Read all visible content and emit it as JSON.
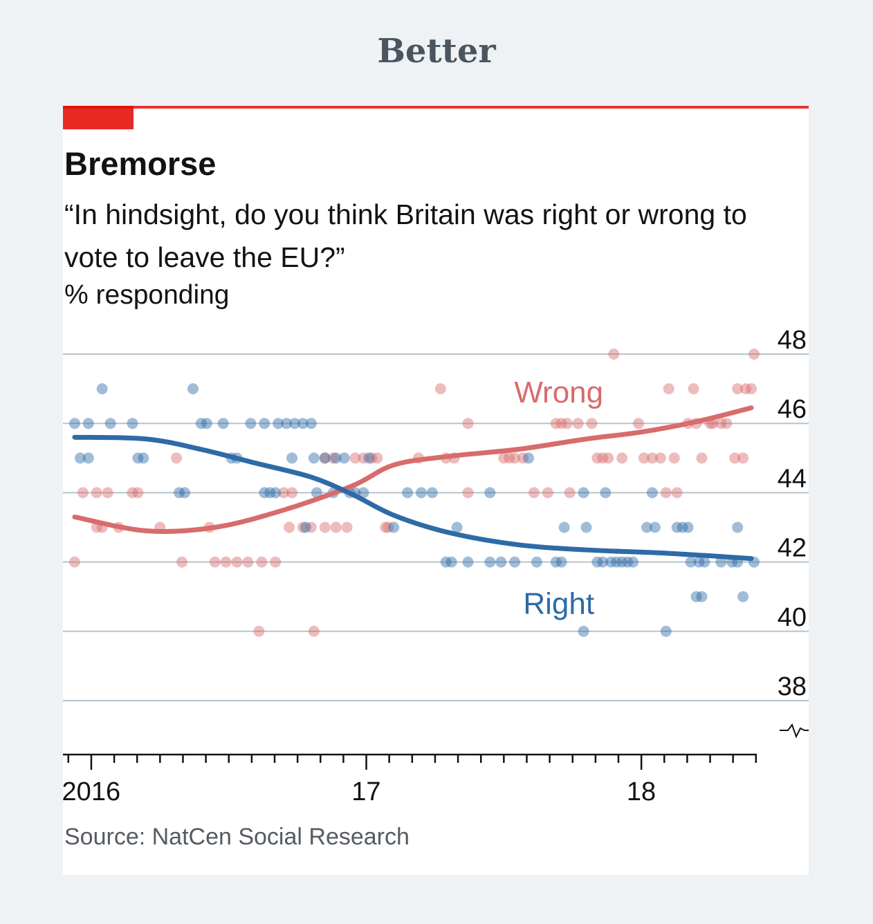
{
  "header": {
    "title": "Better"
  },
  "colors": {
    "accent": "#e3120b",
    "wrong": "#d86b6b",
    "right": "#2e6aa6",
    "grid": "#b7c3cc"
  },
  "chart_data": {
    "type": "scatter",
    "title": "Bremorse",
    "subtitle": "“In hindsight, do you think Britain was right or wrong to vote to leave the EU?”",
    "unit": "% responding",
    "ylim": [
      38,
      48
    ],
    "yticks": [
      38,
      40,
      42,
      44,
      46,
      48
    ],
    "y_axis_break": true,
    "xlim": [
      2015.92,
      2018.42
    ],
    "xticks": [
      {
        "value": 2016,
        "label": "2016"
      },
      {
        "value": 2017,
        "label": "17"
      },
      {
        "value": 2018,
        "label": "18"
      }
    ],
    "grid": true,
    "series": [
      {
        "name": "Wrong",
        "color": "#d86b6b",
        "points": [
          [
            2015.94,
            42
          ],
          [
            2015.97,
            44
          ],
          [
            2016.02,
            43
          ],
          [
            2016.04,
            43
          ],
          [
            2016.1,
            43
          ],
          [
            2016.02,
            44
          ],
          [
            2016.06,
            44
          ],
          [
            2016.15,
            44
          ],
          [
            2016.17,
            44
          ],
          [
            2016.25,
            43
          ],
          [
            2016.31,
            45
          ],
          [
            2016.33,
            42
          ],
          [
            2016.43,
            43
          ],
          [
            2016.45,
            42
          ],
          [
            2016.49,
            42
          ],
          [
            2016.53,
            42
          ],
          [
            2016.57,
            42
          ],
          [
            2016.62,
            42
          ],
          [
            2016.61,
            40
          ],
          [
            2016.67,
            42
          ],
          [
            2016.7,
            44
          ],
          [
            2016.73,
            44
          ],
          [
            2016.72,
            43
          ],
          [
            2016.77,
            43
          ],
          [
            2016.8,
            43
          ],
          [
            2016.85,
            45
          ],
          [
            2016.88,
            45
          ],
          [
            2016.85,
            43
          ],
          [
            2016.89,
            43
          ],
          [
            2016.93,
            43
          ],
          [
            2016.81,
            40
          ],
          [
            2016.96,
            45
          ],
          [
            2016.99,
            45
          ],
          [
            2017.02,
            45
          ],
          [
            2017.04,
            45
          ],
          [
            2017.07,
            43
          ],
          [
            2017.08,
            43
          ],
          [
            2017.19,
            45
          ],
          [
            2017.27,
            47
          ],
          [
            2017.29,
            45
          ],
          [
            2017.32,
            45
          ],
          [
            2017.37,
            46
          ],
          [
            2017.37,
            44
          ],
          [
            2017.5,
            45
          ],
          [
            2017.52,
            45
          ],
          [
            2017.54,
            45
          ],
          [
            2017.57,
            45
          ],
          [
            2017.61,
            44
          ],
          [
            2017.66,
            44
          ],
          [
            2017.69,
            46
          ],
          [
            2017.71,
            46
          ],
          [
            2017.73,
            46
          ],
          [
            2017.74,
            44
          ],
          [
            2017.77,
            46
          ],
          [
            2017.82,
            46
          ],
          [
            2017.84,
            45
          ],
          [
            2017.86,
            45
          ],
          [
            2017.88,
            45
          ],
          [
            2017.9,
            48
          ],
          [
            2017.93,
            45
          ],
          [
            2017.99,
            46
          ],
          [
            2018.01,
            45
          ],
          [
            2018.04,
            45
          ],
          [
            2018.07,
            45
          ],
          [
            2018.1,
            47
          ],
          [
            2018.12,
            45
          ],
          [
            2018.09,
            44
          ],
          [
            2018.13,
            44
          ],
          [
            2018.19,
            47
          ],
          [
            2018.17,
            46
          ],
          [
            2018.2,
            46
          ],
          [
            2018.22,
            45
          ],
          [
            2018.25,
            46
          ],
          [
            2018.26,
            46
          ],
          [
            2018.29,
            46
          ],
          [
            2018.31,
            46
          ],
          [
            2018.35,
            47
          ],
          [
            2018.38,
            47
          ],
          [
            2018.4,
            47
          ],
          [
            2018.34,
            45
          ],
          [
            2018.37,
            45
          ],
          [
            2018.41,
            48
          ]
        ],
        "trend": [
          [
            2015.94,
            43.3
          ],
          [
            2016.2,
            42.9
          ],
          [
            2016.45,
            43.0
          ],
          [
            2016.7,
            43.5
          ],
          [
            2016.95,
            44.2
          ],
          [
            2017.1,
            44.8
          ],
          [
            2017.3,
            45.05
          ],
          [
            2017.55,
            45.25
          ],
          [
            2017.8,
            45.55
          ],
          [
            2018.0,
            45.75
          ],
          [
            2018.2,
            46.05
          ],
          [
            2018.4,
            46.45
          ]
        ]
      },
      {
        "name": "Right",
        "color": "#2e6aa6",
        "points": [
          [
            2015.94,
            46
          ],
          [
            2015.99,
            46
          ],
          [
            2016.04,
            47
          ],
          [
            2016.07,
            46
          ],
          [
            2015.96,
            45
          ],
          [
            2015.99,
            45
          ],
          [
            2016.17,
            45
          ],
          [
            2016.19,
            45
          ],
          [
            2016.15,
            46
          ],
          [
            2016.32,
            44
          ],
          [
            2016.34,
            44
          ],
          [
            2016.37,
            47
          ],
          [
            2016.4,
            46
          ],
          [
            2016.42,
            46
          ],
          [
            2016.48,
            46
          ],
          [
            2016.51,
            45
          ],
          [
            2016.53,
            45
          ],
          [
            2016.58,
            46
          ],
          [
            2016.63,
            46
          ],
          [
            2016.68,
            46
          ],
          [
            2016.71,
            46
          ],
          [
            2016.74,
            46
          ],
          [
            2016.77,
            46
          ],
          [
            2016.8,
            46
          ],
          [
            2016.63,
            44
          ],
          [
            2016.65,
            44
          ],
          [
            2016.67,
            44
          ],
          [
            2016.73,
            45
          ],
          [
            2016.81,
            45
          ],
          [
            2016.85,
            45
          ],
          [
            2016.89,
            45
          ],
          [
            2016.92,
            45
          ],
          [
            2016.82,
            44
          ],
          [
            2016.88,
            44
          ],
          [
            2016.94,
            44
          ],
          [
            2016.96,
            44
          ],
          [
            2016.99,
            44
          ],
          [
            2017.01,
            45
          ],
          [
            2016.78,
            43
          ],
          [
            2017.1,
            43
          ],
          [
            2017.15,
            44
          ],
          [
            2017.2,
            44
          ],
          [
            2017.24,
            44
          ],
          [
            2017.33,
            43
          ],
          [
            2017.29,
            42
          ],
          [
            2017.31,
            42
          ],
          [
            2017.37,
            42
          ],
          [
            2017.45,
            44
          ],
          [
            2017.45,
            42
          ],
          [
            2017.49,
            42
          ],
          [
            2017.54,
            42
          ],
          [
            2017.59,
            45
          ],
          [
            2017.62,
            42
          ],
          [
            2017.69,
            42
          ],
          [
            2017.71,
            42
          ],
          [
            2017.72,
            43
          ],
          [
            2017.8,
            43
          ],
          [
            2017.79,
            44
          ],
          [
            2017.84,
            42
          ],
          [
            2017.86,
            42
          ],
          [
            2017.87,
            44
          ],
          [
            2017.89,
            42
          ],
          [
            2017.91,
            42
          ],
          [
            2017.93,
            42
          ],
          [
            2017.95,
            42
          ],
          [
            2017.97,
            42
          ],
          [
            2017.79,
            40
          ],
          [
            2018.02,
            43
          ],
          [
            2018.05,
            43
          ],
          [
            2018.04,
            44
          ],
          [
            2018.13,
            43
          ],
          [
            2018.15,
            43
          ],
          [
            2018.17,
            43
          ],
          [
            2018.18,
            42
          ],
          [
            2018.21,
            42
          ],
          [
            2018.23,
            42
          ],
          [
            2018.2,
            41
          ],
          [
            2018.22,
            41
          ],
          [
            2018.29,
            42
          ],
          [
            2018.33,
            42
          ],
          [
            2018.35,
            42
          ],
          [
            2018.35,
            43
          ],
          [
            2018.37,
            41
          ],
          [
            2018.41,
            42
          ],
          [
            2018.09,
            40
          ]
        ],
        "trend": [
          [
            2015.94,
            45.6
          ],
          [
            2016.2,
            45.55
          ],
          [
            2016.4,
            45.25
          ],
          [
            2016.6,
            44.85
          ],
          [
            2016.8,
            44.45
          ],
          [
            2016.95,
            43.95
          ],
          [
            2017.1,
            43.35
          ],
          [
            2017.3,
            42.85
          ],
          [
            2017.55,
            42.5
          ],
          [
            2017.8,
            42.35
          ],
          [
            2018.1,
            42.25
          ],
          [
            2018.4,
            42.1
          ]
        ]
      }
    ],
    "labels": [
      {
        "text": "Wrong",
        "series": "Wrong",
        "x": 2017.7,
        "y": 46.9
      },
      {
        "text": "Right",
        "series": "Right",
        "x": 2017.7,
        "y": 40.8
      }
    ]
  },
  "source": "Source: NatCen Social Research"
}
